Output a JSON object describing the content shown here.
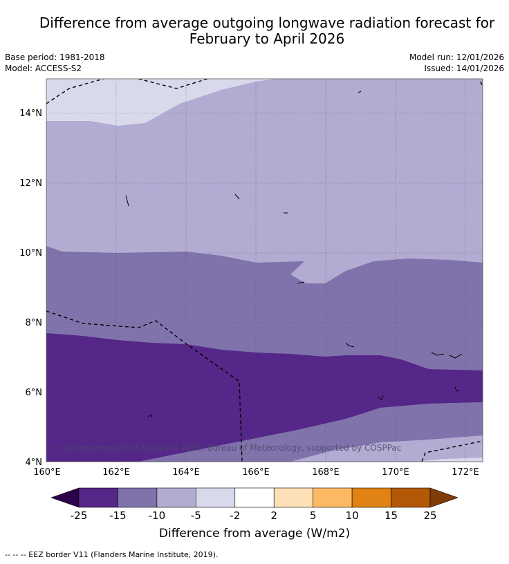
{
  "title": "Difference from average outgoing longwave radiation forecast for February to April 2026",
  "title_line1": "Difference from average outgoing longwave radiation forecast for",
  "title_line2": "February to April 2026",
  "meta": {
    "base_period": "Base period: 1981-2018",
    "model": "Model: ACCESS-S2",
    "model_run": "Model run: 12/01/2026",
    "issued": "Issued: 14/01/2026"
  },
  "map": {
    "lat_labels": [
      "14°N",
      "12°N",
      "10°N",
      "8°N",
      "6°N",
      "4°N"
    ],
    "lon_labels": [
      "160°E",
      "162°E",
      "164°E",
      "166°E",
      "168°E",
      "170°E",
      "172°E"
    ],
    "copyright": "© Commonwealth of Australia 2026, Bureau of Meteorology, supported by COSPPac"
  },
  "colorbar": {
    "title": "Difference from average (W/m2)",
    "ticks": [
      "-25",
      "-15",
      "-10",
      "-5",
      "-2",
      "2",
      "5",
      "10",
      "15",
      "25"
    ],
    "colors": [
      "#2d004b",
      "#542788",
      "#8073ac",
      "#b2abd2",
      "#d8daeb",
      "#ffffff",
      "#fee0b6",
      "#fdb863",
      "#e08214",
      "#b35806",
      "#7f3b08"
    ]
  },
  "footnote": "--  --  -- EEZ border V11 (Flanders Marine Institute, 2019)."
}
